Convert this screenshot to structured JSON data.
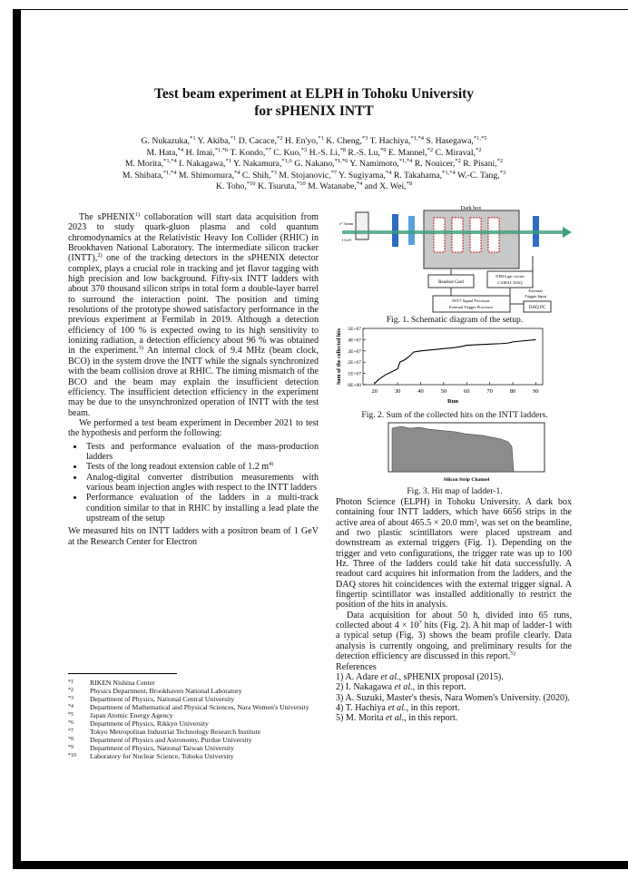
{
  "title": [
    "Test beam experiment at ELPH in Tohoku University",
    "for sPHENIX INTT"
  ],
  "authors": [
    [
      [
        "G. Nukazuka,",
        "*1"
      ],
      [
        "Y. Akiba,",
        "*1"
      ],
      [
        "D. Cacace,",
        "*2"
      ],
      [
        "H. En'yo,",
        "*1"
      ],
      [
        "K. Cheng,",
        "*3"
      ],
      [
        "T. Hachiya,",
        "*1,*4"
      ],
      [
        "S. Hasegawa,",
        "*1,*5"
      ]
    ],
    [
      [
        "M. Hata,",
        "*4"
      ],
      [
        "H. Imai,",
        "*1,*6"
      ],
      [
        "T. Kondo,",
        "*7"
      ],
      [
        "C. Kuo,",
        "*3"
      ],
      [
        "H.-S. Li,",
        "*8"
      ],
      [
        "R.-S. Lu,",
        "*9"
      ],
      [
        "E. Mannel,",
        "*2"
      ],
      [
        "C. Miraval,",
        "*2"
      ]
    ],
    [
      [
        "M. Morita,",
        "*1,*4"
      ],
      [
        "I. Nakagawa,",
        "*1"
      ],
      [
        "Y. Nakamura,",
        "*1,6"
      ],
      [
        "G. Nakano,",
        "*1,*6"
      ],
      [
        "Y. Namimoto,",
        "*1,*4"
      ],
      [
        "R. Nouicer,",
        "*2"
      ],
      [
        "R. Pisani,",
        "*2"
      ]
    ],
    [
      [
        "M. Shibata,",
        "*1,*4"
      ],
      [
        "M. Shimomura,",
        "*4"
      ],
      [
        "C. Shih,",
        "*3"
      ],
      [
        "M. Stojanovic,",
        "*7"
      ],
      [
        "Y. Sugiyama,",
        "*4"
      ],
      [
        "R. Takahama,",
        "*1,*4"
      ],
      [
        "W.-C. Tang,",
        "*3"
      ]
    ],
    [
      [
        "K. Toho,",
        "*10"
      ],
      [
        "K. Tsuruta,",
        "*10"
      ],
      [
        "M. Watanabe,",
        "*4"
      ],
      [
        "and X. Wei,",
        "*8"
      ]
    ]
  ],
  "left_column": {
    "paragraphs_before": [
      [
        "The sPHENIX",
        {
          "sup": "1)"
        },
        " collaboration will start data acquisition from 2023 to study quark-gluon plasma and cold quantum chromodynamics at the Relativistic Heavy Ion Collider (RHIC) in Brookhaven National Laboratory. The intermediate silicon tracker (INTT),",
        {
          "sup": "2)"
        },
        " one of the tracking detectors in the sPHENIX detector complex, plays a crucial role in tracking and jet flavor tagging with high precision and low background. Fifty-six INTT ladders with about 370 thousand silicon strips in total form a double-layer barrel to surround the interaction point. The position and timing resolutions of the prototype showed satisfactory performance in the previous experiment at Fermilab in 2019. Although a detection efficiency of 100 % is expected owing to its high sensitivity to ionizing radiation, a detection efficiency about 96 % was obtained in the experiment.",
        {
          "sup": "3)"
        },
        " An internal clock of 9.4 MHz (beam clock, BCO) in the system drove the INTT while the signals synchronized with the beam collision drove at RHIC. The timing mismatch of the BCO and the beam may explain the insufficient detection efficiency. The insufficient detection efficiency in the experiment may be due to the unsynchronized operation of INTT with the test beam."
      ],
      [
        "We performed a test beam experiment in December 2021 to test the hypothesis and perform the following:"
      ]
    ],
    "bullets": [
      [
        "Tests and performance evaluation of the mass-production ladders"
      ],
      [
        "Tests of the long readout extension cable of 1.2 m",
        {
          "sup": "4)"
        }
      ],
      [
        "Analog-digital converter distribution measurements with various beam injection angles with respect to the INTT ladders"
      ],
      [
        "Performance evaluation of the ladders in a multi-track condition similar to that in RHIC by installing a lead plate the upstream of the setup"
      ]
    ],
    "paragraphs_after": [
      [
        "We measured hits on INTT ladders with a positron beam of 1 GeV at the Research Center for Electron"
      ]
    ]
  },
  "right_column": {
    "paragraphs": [
      [
        "Photon Science (ELPH) in Tohoku University. A dark box containing four INTT ladders, which have 6656 strips in the active area of about 465.5 × 20.0 mm², was set on the beamline, and two plastic scintillators were placed upstream and downstream as external triggers (Fig. 1). Depending on the trigger and veto configurations, the trigger rate was up to 100 Hz. Three of the ladders could take hit data successfully. A readout card acquires hit information from the ladders, and the DAQ stores hit coincidences with the external trigger signal. A fingertip scintillator was installed additionally to restrict the position of the hits in analysis."
      ],
      [
        "Data acquisition for about 50 h, divided into 65 runs, collected about 4 × 10",
        {
          "sup": "7"
        },
        " hits (Fig. 2). A hit map of ladder-1 with a typical setup (Fig. 3) shows the beam profile clearly. Data analysis is currently ongoing, and preliminary results for the detection efficiency are discussed in this report.",
        {
          "sup": "5)"
        }
      ]
    ]
  },
  "references": {
    "heading": "References",
    "items": [
      [
        "1) A. Adare ",
        {
          "i": "et al."
        },
        ", sPHENIX proposal (2015)."
      ],
      [
        "2) I. Nakagawa ",
        {
          "i": "et al."
        },
        ", in this report."
      ],
      [
        "3) A. Suzuki, Master's thesis, Nara Women's University. (2020)."
      ],
      [
        "4) T. Hachiya ",
        {
          "i": "et al."
        },
        ", in this report."
      ],
      [
        "5) M. Morita ",
        {
          "i": "et al."
        },
        ", in this report."
      ]
    ]
  },
  "footnotes": [
    [
      "*1",
      "RIKEN Nishina Center"
    ],
    [
      "*2",
      "Physics Department, Brookhaven National Laboratory"
    ],
    [
      "*3",
      "Department of Physics, National Central University"
    ],
    [
      "*4",
      "Department of Mathematical and Physical Sciences, Nara Women's University"
    ],
    [
      "*5",
      "Japan Atomic Energy Agency"
    ],
    [
      "*6",
      "Department of Physics, Rikkyo University"
    ],
    [
      "*7",
      "Tokyo Metropolitan Industrial Technology Research Institute"
    ],
    [
      "*8",
      "Department of Physics and Astronomy, Purdue University"
    ],
    [
      "*9",
      "Department of Physics, National Taiwan University"
    ],
    [
      "*10",
      "Laboratory for Nuclear Science, Tohoku University"
    ]
  ],
  "figures": {
    "fig1": {
      "caption": "Fig. 1. Schematic diagram of the setup.",
      "labels": {
        "dark_box": "Dark box",
        "beam": "e⁺ beam",
        "energy": "1 GeV",
        "readout": "Readout Card",
        "nim": "NIM logic circuit",
        "camac": "CAMAC DAQ",
        "ext1": "External",
        "ext2": "Trigger Input",
        "proc1": "INTT Signal Processor",
        "proc2": "External Trigger Processor",
        "daq": "DAQ PC"
      }
    },
    "fig2": {
      "type": "line",
      "caption": "Fig. 2. Sum of the collected hits on the INTT ladders.",
      "xlabel": "Run",
      "ylabel": "Sum of the collected hits",
      "color": "#000000",
      "x": [
        20,
        22,
        25,
        28,
        30,
        31,
        33,
        35,
        37,
        40,
        45,
        50,
        55,
        58,
        60,
        65,
        70,
        75,
        78,
        80,
        85,
        90
      ],
      "values": [
        1000000,
        5000000,
        9000000,
        12000000,
        14000000,
        20000000,
        22000000,
        25000000,
        29000000,
        30000000,
        31000000,
        32000000,
        33000000,
        34000000,
        35000000,
        35500000,
        36000000,
        36500000,
        37000000,
        38000000,
        39000000,
        40000000
      ],
      "xlim": [
        15,
        93
      ],
      "xticks": [
        20,
        30,
        40,
        50,
        60,
        70,
        80,
        90
      ],
      "ylim": [
        0,
        50000000
      ],
      "yticks": [
        {
          "value": 0,
          "label": "0E+00"
        },
        {
          "value": 10000000,
          "label": "1E+07"
        },
        {
          "value": 20000000,
          "label": "2E+07"
        },
        {
          "value": 30000000,
          "label": "3E+07"
        },
        {
          "value": 40000000,
          "label": "4E+07"
        },
        {
          "value": 50000000,
          "label": "5E+07"
        }
      ]
    },
    "fig3": {
      "caption": "Fig. 3. Hit map of ladder-1.",
      "xlabel": "Silicon Strip Channel"
    }
  }
}
